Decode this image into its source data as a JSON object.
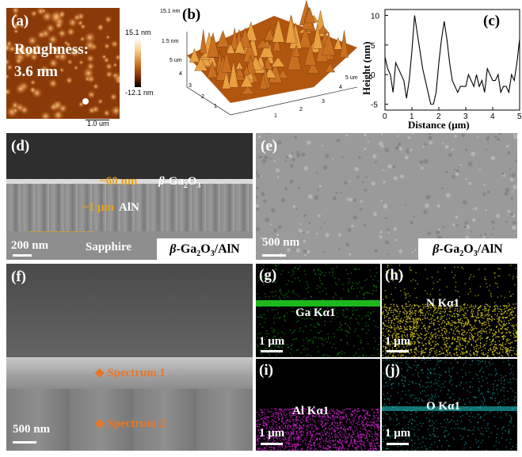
{
  "panel_a": {
    "label": "(a)",
    "roughness_label": "Roughness:",
    "roughness_value": "3.6 nm",
    "scale_bar": "1.0 um",
    "colorbar_max": "15.1 nm",
    "colorbar_min": "-12.1 nm"
  },
  "panel_b": {
    "label": "(b)",
    "z_ticks": [
      "15.1 nm",
      "1.5 nm"
    ],
    "axis_ticks_x": [
      "1",
      "2",
      "3",
      "4",
      "5"
    ],
    "axis_ticks_y": [
      "1",
      "2",
      "3",
      "4",
      "5 um"
    ],
    "axis_ticks_right": [
      "4",
      "5 um"
    ]
  },
  "panel_c": {
    "label": "(c)",
    "xlabel": "Distance (μm)",
    "ylabel": "Height (nm)",
    "xticks": [
      "0",
      "1",
      "2",
      "3",
      "4",
      "5"
    ],
    "yticks": [
      "10",
      "5",
      "0",
      "-5"
    ]
  },
  "panel_d": {
    "label": "(d)",
    "layer1_thickness": "~60 nm",
    "layer1_material_italic": "β",
    "layer1_material": "-Ga",
    "layer1_sub": "2",
    "layer1_material2": "O",
    "layer1_sub2": "3",
    "layer2": "~1 μm",
    "layer2_material": "AlN",
    "substrate": "Sapphire",
    "scale_bar": "200 nm",
    "sample_prefix": "β",
    "sample_mid": "-Ga",
    "sample_sub1": "2",
    "sample_mid2": "O",
    "sample_sub2": "3",
    "sample_suffix": "/AlN"
  },
  "panel_e": {
    "label": "(e)",
    "scale_bar": "500 nm",
    "sample_prefix": "β",
    "sample_mid": "-Ga",
    "sample_sub1": "2",
    "sample_mid2": "O",
    "sample_sub2": "3",
    "sample_suffix": "/AlN"
  },
  "panel_f": {
    "label": "(f)",
    "spectrum1": "Spectrum 1",
    "spectrum2": "Spectrum 2",
    "scale_bar": "500 nm"
  },
  "panel_g": {
    "label": "(g)",
    "element": "Ga Kα1",
    "scale_bar": "1 μm",
    "color": "#1fc21f"
  },
  "panel_h": {
    "label": "(h)",
    "element": "N Kα1",
    "scale_bar": "1 μm",
    "color": "#d4c81c"
  },
  "panel_i": {
    "label": "(i)",
    "element": "Al Kα1",
    "scale_bar": "1 μm",
    "color": "#c21fc2"
  },
  "panel_j": {
    "label": "(j)",
    "element": "O Kα1",
    "scale_bar": "1 μm",
    "color": "#1fc2c2"
  },
  "chart_data": {
    "type": "line",
    "title": "",
    "xlabel": "Distance (μm)",
    "ylabel": "Height (nm)",
    "xlim": [
      0,
      5
    ],
    "ylim": [
      -6,
      11
    ],
    "x": [
      0,
      0.1,
      0.2,
      0.3,
      0.4,
      0.5,
      0.6,
      0.7,
      0.8,
      0.9,
      1.0,
      1.1,
      1.2,
      1.3,
      1.4,
      1.5,
      1.6,
      1.7,
      1.8,
      1.9,
      2.0,
      2.1,
      2.2,
      2.3,
      2.4,
      2.5,
      2.6,
      2.7,
      2.8,
      2.9,
      3.0,
      3.1,
      3.2,
      3.3,
      3.4,
      3.5,
      3.6,
      3.7,
      3.8,
      3.9,
      4.0,
      4.1,
      4.2,
      4.3,
      4.4,
      4.5,
      4.6,
      4.7,
      4.8,
      4.9,
      5.0
    ],
    "y": [
      3,
      1,
      0,
      -3,
      2,
      1,
      0,
      -1,
      -4,
      -1,
      4,
      10,
      7,
      4,
      1,
      -1,
      -3,
      -5,
      -5,
      -3,
      2,
      6,
      9,
      6,
      2,
      -1,
      -2,
      -3,
      -2,
      -2,
      -2,
      0,
      -1,
      -2,
      0,
      -2,
      -1,
      -3,
      1,
      0,
      -1,
      -1,
      0,
      -3,
      -2,
      -2,
      -3,
      0,
      -1,
      2,
      6
    ]
  }
}
